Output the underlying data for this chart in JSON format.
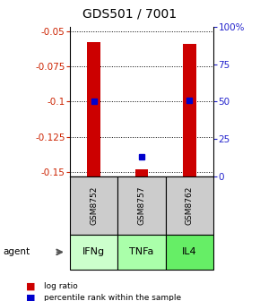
{
  "title": "GDS501 / 7001",
  "samples": [
    "GSM8752",
    "GSM8757",
    "GSM8762"
  ],
  "agents": [
    "IFNg",
    "TNFa",
    "IL4"
  ],
  "log_ratios": [
    -0.058,
    -0.148,
    -0.059
  ],
  "percentile_ranks": [
    50,
    13,
    51
  ],
  "ymin": -0.153,
  "ymax": -0.047,
  "y_ticks_left": [
    -0.05,
    -0.075,
    -0.1,
    -0.125,
    -0.15
  ],
  "y_ticks_right": [
    0,
    25,
    50,
    75,
    100
  ],
  "bar_bottom": -0.153,
  "bar_color": "#cc0000",
  "dot_color": "#0000cc",
  "left_axis_color": "#cc2200",
  "right_axis_color": "#2222cc",
  "agent_colors": [
    "#ccffcc",
    "#aaffaa",
    "#66ee66"
  ],
  "sample_bg_color": "#cccccc",
  "title_fontsize": 10,
  "tick_fontsize": 7.5,
  "bar_width": 0.28
}
